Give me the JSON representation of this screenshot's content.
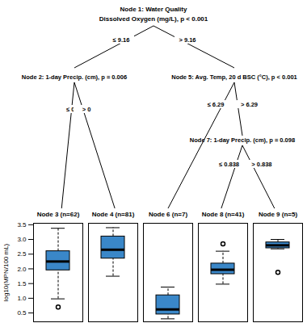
{
  "tree": {
    "nodes": [
      {
        "label": "Node 1: Water Quality",
        "detail": "Dissolved Oxygen (mg/L), p < 0.001",
        "edges": [
          "≤ 9.16",
          "> 9.16"
        ]
      },
      {
        "label": "Node 2: 1-day Precip. (cm), p = 0.006",
        "edges": [
          "≤ 0",
          "> 0"
        ]
      },
      {
        "label": "Node 5: Avg. Temp, 20 d BSC (°C), p < 0.001",
        "edges": [
          "≤ 6.29",
          "> 6.29"
        ]
      },
      {
        "label": "Node 7: 1-day Precip. (cm), p = 0.098",
        "edges": [
          "≤ 0.838",
          "> 0.838"
        ]
      }
    ]
  },
  "chart_data": {
    "type": "boxplot",
    "ylabel": "log10(MPN/100 mL)",
    "color": "#3a87c8",
    "ylim": [
      0.2,
      3.55
    ],
    "yticks": [
      0.5,
      {
        "value": 1,
        "label": "1.0"
      },
      1.5,
      {
        "value": 2,
        "label": "2.0"
      },
      2.5,
      {
        "value": 3,
        "label": "3.0"
      },
      3.5
    ],
    "boxes": [
      {
        "name": "Node 3 (n=62)",
        "low": 0.98,
        "q1": 1.95,
        "median": 2.25,
        "q3": 2.6,
        "high": 3.38,
        "outliers": [
          0.7
        ]
      },
      {
        "name": "Node 4 (n=81)",
        "low": 1.75,
        "q1": 2.35,
        "median": 2.65,
        "q3": 3.1,
        "high": 3.4,
        "outliers": []
      },
      {
        "name": "Node 6 (n=7)",
        "low": 0.3,
        "q1": 0.45,
        "median": 0.62,
        "q3": 1.1,
        "high": 1.38,
        "outliers": []
      },
      {
        "name": "Node 8 (n=41)",
        "low": 1.48,
        "q1": 1.82,
        "median": 1.97,
        "q3": 2.18,
        "high": 2.6,
        "outliers": [
          2.85
        ]
      },
      {
        "name": "Node 9 (n=5)",
        "low": 2.68,
        "q1": 2.7,
        "median": 2.8,
        "q3": 2.9,
        "high": 3.0,
        "outliers": [
          1.88
        ]
      }
    ]
  }
}
